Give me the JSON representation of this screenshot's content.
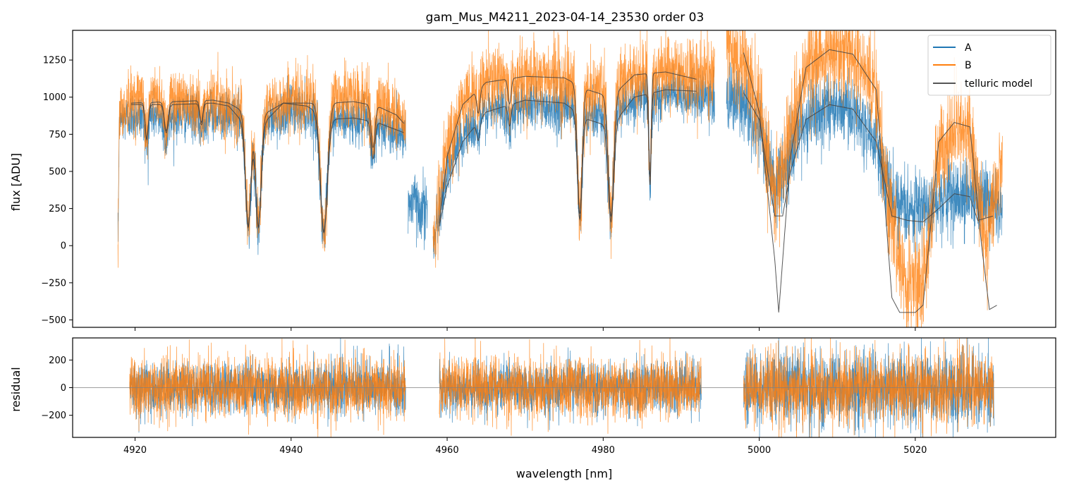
{
  "chart_data": {
    "type": "line",
    "title": "gam_Mus_M4211_2023-04-14_23530  order 03",
    "xlabel": "wavelength [nm]",
    "xlim": [
      4912,
      5038
    ],
    "x_ticks": [
      4920,
      4940,
      4960,
      4980,
      5000,
      5020
    ],
    "x_tick_labels": [
      "4920",
      "4940",
      "4960",
      "4980",
      "5000",
      "5020"
    ],
    "colors": {
      "A": "#1f77b4",
      "B": "#ff7f0e",
      "model": "#444444",
      "zero_line": "#808080"
    },
    "panels": [
      {
        "name": "flux",
        "ylabel": "flux [ADU]",
        "ylim": [
          -550,
          1450
        ],
        "y_ticks": [
          -500,
          -250,
          0,
          250,
          500,
          750,
          1000,
          1250
        ],
        "y_tick_labels": [
          "−500",
          "−250",
          "0",
          "250",
          "500",
          "750",
          "1000",
          "1250"
        ],
        "legend": {
          "position": "top-right",
          "entries": [
            "A",
            "B",
            "telluric model"
          ]
        },
        "segments": [
          {
            "range": [
              4917.8,
              4954.7
            ],
            "noise_A": 80,
            "noise_B": 95,
            "base_A": [
              [
                4917.8,
                0
              ],
              [
                4918,
                850
              ],
              [
                4920,
                880
              ],
              [
                4925,
                870
              ],
              [
                4930,
                890
              ],
              [
                4933,
                870
              ],
              [
                4936,
                800
              ],
              [
                4940,
                920
              ],
              [
                4943,
                890
              ],
              [
                4947,
                850
              ],
              [
                4950,
                840
              ],
              [
                4953,
                780
              ],
              [
                4954.7,
                760
              ]
            ],
            "base_B": [
              [
                4917.8,
                0
              ],
              [
                4918,
                900
              ],
              [
                4920,
                1000
              ],
              [
                4925,
                990
              ],
              [
                4930,
                980
              ],
              [
                4933,
                930
              ],
              [
                4936,
                900
              ],
              [
                4940,
                990
              ],
              [
                4943,
                980
              ],
              [
                4947,
                1000
              ],
              [
                4950,
                980
              ],
              [
                4953,
                920
              ],
              [
                4954.7,
                800
              ]
            ],
            "model_A": [
              [
                4919.5,
                950
              ],
              [
                4925,
                950
              ],
              [
                4930,
                960
              ],
              [
                4932,
                940
              ],
              [
                4934,
                820
              ],
              [
                4936,
                800
              ],
              [
                4939,
                960
              ],
              [
                4942,
                940
              ],
              [
                4945,
                850
              ],
              [
                4948,
                860
              ],
              [
                4951,
                830
              ],
              [
                4953.5,
                780
              ],
              [
                4954.5,
                760
              ]
            ],
            "model_B": [
              [
                4919.5,
                960
              ],
              [
                4925,
                970
              ],
              [
                4930,
                980
              ],
              [
                4932,
                960
              ],
              [
                4934,
                900
              ],
              [
                4936,
                870
              ],
              [
                4939,
                960
              ],
              [
                4942,
                960
              ],
              [
                4945,
                960
              ],
              [
                4948,
                970
              ],
              [
                4951,
                940
              ],
              [
                4953.5,
                880
              ],
              [
                4954.5,
                820
              ]
            ]
          },
          {
            "range": [
              4955,
              4957.5
            ],
            "noise_A": 110,
            "noise_B": 0,
            "base_A": [
              [
                4955,
                300
              ],
              [
                4957.5,
                250
              ]
            ],
            "base_B": [],
            "model_A": [],
            "model_B": []
          },
          {
            "range": [
              4958.2,
              4994.3
            ],
            "noise_A": 85,
            "noise_B": 110,
            "base_A": [
              [
                4958.2,
                0
              ],
              [
                4960,
                500
              ],
              [
                4962,
                750
              ],
              [
                4965,
                900
              ],
              [
                4970,
                960
              ],
              [
                4975,
                930
              ],
              [
                4978,
                880
              ],
              [
                4981,
                900
              ],
              [
                4985,
                1000
              ],
              [
                4990,
                1010
              ],
              [
                4994.3,
                1000
              ]
            ],
            "base_B": [
              [
                4958.2,
                0
              ],
              [
                4960,
                650
              ],
              [
                4962,
                950
              ],
              [
                4965,
                1100
              ],
              [
                4970,
                1130
              ],
              [
                4975,
                1120
              ],
              [
                4978,
                1030
              ],
              [
                4981,
                1080
              ],
              [
                4985,
                1150
              ],
              [
                4990,
                1160
              ],
              [
                4994.3,
                1150
              ]
            ],
            "model_A": [
              [
                4959,
                130
              ],
              [
                4960,
                400
              ],
              [
                4962,
                700
              ],
              [
                4965,
                900
              ],
              [
                4970,
                980
              ],
              [
                4975,
                960
              ],
              [
                4978,
                850
              ],
              [
                4981,
                800
              ],
              [
                4984,
                1000
              ],
              [
                4988,
                1050
              ],
              [
                4992,
                1040
              ]
            ],
            "model_B": [
              [
                4959,
                150
              ],
              [
                4960,
                600
              ],
              [
                4962,
                950
              ],
              [
                4965,
                1100
              ],
              [
                4970,
                1140
              ],
              [
                4975,
                1130
              ],
              [
                4978,
                1050
              ],
              [
                4981,
                1000
              ],
              [
                4984,
                1150
              ],
              [
                4988,
                1170
              ],
              [
                4992,
                1120
              ]
            ]
          },
          {
            "range": [
              4995.8,
              5031.2
            ],
            "noise_A": 120,
            "noise_B": 145,
            "base_A": [
              [
                4995.8,
                1000
              ],
              [
                4998,
                950
              ],
              [
                5000,
                800
              ],
              [
                5002,
                350
              ],
              [
                5004,
                600
              ],
              [
                5006,
                850
              ],
              [
                5009,
                950
              ],
              [
                5012,
                900
              ],
              [
                5015,
                700
              ],
              [
                5017,
                300
              ],
              [
                5019,
                250
              ],
              [
                5021,
                280
              ],
              [
                5024,
                330
              ],
              [
                5027,
                340
              ],
              [
                5029,
                300
              ],
              [
                5031.2,
                250
              ]
            ],
            "base_B": [
              [
                4995.8,
                1300
              ],
              [
                4998,
                1250
              ],
              [
                5000,
                900
              ],
              [
                5002,
                300
              ],
              [
                5004,
                800
              ],
              [
                5006,
                1200
              ],
              [
                5009,
                1320
              ],
              [
                5012,
                1290
              ],
              [
                5015,
                1050
              ],
              [
                5017,
                100
              ],
              [
                5019,
                -300
              ],
              [
                5021,
                -250
              ],
              [
                5023,
                600
              ],
              [
                5025,
                800
              ],
              [
                5027,
                750
              ],
              [
                5029,
                0
              ],
              [
                5031.2,
                600
              ]
            ],
            "model_A": [
              [
                4998,
                1030
              ],
              [
                5000,
                850
              ],
              [
                5002,
                200
              ],
              [
                5003,
                200
              ],
              [
                5004,
                500
              ],
              [
                5006,
                850
              ],
              [
                5009,
                950
              ],
              [
                5012,
                920
              ],
              [
                5015,
                700
              ],
              [
                5017,
                200
              ],
              [
                5019,
                170
              ],
              [
                5021,
                160
              ],
              [
                5023,
                250
              ],
              [
                5025,
                350
              ],
              [
                5027,
                330
              ],
              [
                5028,
                170
              ],
              [
                5030,
                200
              ]
            ],
            "model_B": [
              [
                4998,
                1300
              ],
              [
                5000,
                900
              ],
              [
                5002,
                -100
              ],
              [
                5002.5,
                -450
              ],
              [
                5003,
                -100
              ],
              [
                5004,
                600
              ],
              [
                5006,
                1200
              ],
              [
                5009,
                1320
              ],
              [
                5012,
                1290
              ],
              [
                5015,
                1050
              ],
              [
                5017,
                -350
              ],
              [
                5018,
                -450
              ],
              [
                5020,
                -450
              ],
              [
                5021,
                -400
              ],
              [
                5023,
                700
              ],
              [
                5025,
                830
              ],
              [
                5027,
                800
              ],
              [
                5028.5,
                0
              ],
              [
                5029.5,
                -430
              ],
              [
                5030.5,
                -400
              ]
            ]
          }
        ],
        "absorption_lines": [
          {
            "center": 4934.5,
            "depth": 0.85,
            "width": 0.35
          },
          {
            "center": 4935.8,
            "depth": 0.85,
            "width": 0.35
          },
          {
            "center": 4944.2,
            "depth": 0.9,
            "width": 0.45
          },
          {
            "center": 4977.0,
            "depth": 0.8,
            "width": 0.3
          },
          {
            "center": 4981.0,
            "depth": 0.8,
            "width": 0.35
          },
          {
            "center": 4986.0,
            "depth": 0.6,
            "width": 0.15
          },
          {
            "center": 4950.5,
            "depth": 0.3,
            "width": 0.25
          },
          {
            "center": 4964.0,
            "depth": 0.15,
            "width": 0.2
          },
          {
            "center": 4968.0,
            "depth": 0.15,
            "width": 0.2
          },
          {
            "center": 4924.0,
            "depth": 0.2,
            "width": 0.25
          },
          {
            "center": 4921.5,
            "depth": 0.25,
            "width": 0.2
          },
          {
            "center": 4928.5,
            "depth": 0.15,
            "width": 0.2
          }
        ]
      },
      {
        "name": "residual",
        "ylabel": "residual",
        "ylim": [
          -360,
          360
        ],
        "y_ticks": [
          -200,
          0,
          200
        ],
        "y_tick_labels": [
          "−200",
          "0",
          "200"
        ],
        "zero_line": 0,
        "segments": [
          {
            "range": [
              4919.3,
              4954.7
            ],
            "noise_A": 95,
            "noise_B": 110
          },
          {
            "range": [
              4959,
              4992.6
            ],
            "noise_A": 95,
            "noise_B": 110
          },
          {
            "range": [
              4998,
              5030.1
            ],
            "noise_A": 130,
            "noise_B": 130
          }
        ]
      }
    ],
    "series": [
      {
        "name": "A",
        "style": "thin line, blue"
      },
      {
        "name": "B",
        "style": "thin line, orange"
      },
      {
        "name": "telluric model",
        "style": "thin line, dark gray"
      }
    ]
  }
}
